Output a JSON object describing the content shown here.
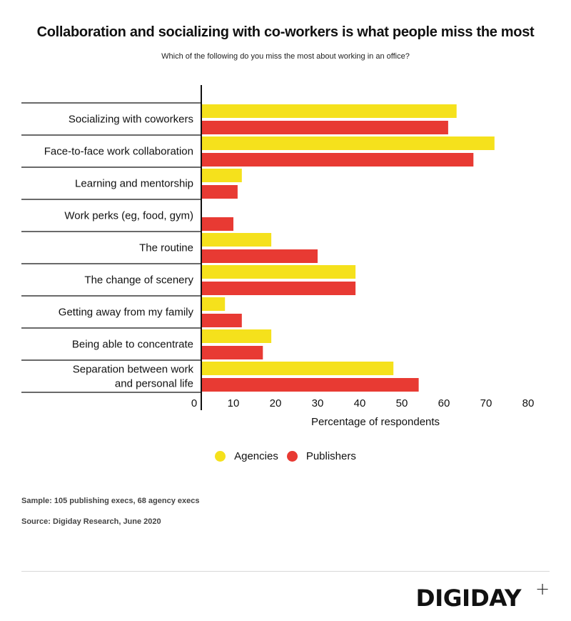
{
  "chart_data": {
    "type": "bar",
    "orientation": "horizontal",
    "title": "Collaboration and socializing with co-workers is what people miss the most",
    "subtitle": "Which of the following do you miss the most about working in an office?",
    "categories": [
      "Socializing with coworkers",
      "Face-to-face work collaboration",
      "Learning and mentorship",
      "Work perks (eg, food, gym)",
      "The routine",
      "The change of scenery",
      "Getting away from my family",
      "Being able to concentrate",
      "Separation between work and personal life"
    ],
    "series": [
      {
        "name": "Agencies",
        "color": "#f5e11c",
        "values": [
          63,
          72,
          12,
          0,
          19,
          39,
          8,
          19,
          48
        ]
      },
      {
        "name": "Publishers",
        "color": "#e83a33",
        "values": [
          61,
          67,
          11,
          10,
          30,
          39,
          12,
          17,
          54
        ]
      }
    ],
    "xlabel": "Percentage of respondents",
    "ylabel": "",
    "xlim": [
      0,
      80
    ],
    "xticks": [
      "0",
      "10",
      "20",
      "30",
      "40",
      "50",
      "60",
      "70",
      "80"
    ],
    "grid": false,
    "legend_position": "bottom-center"
  },
  "notes": {
    "sample": "Sample: 105 publishing execs, 68 agency execs",
    "source": "Source: Digiday Research, June 2020"
  },
  "brand": {
    "logo_text": "DIGIDAY",
    "logo_suffix": "+"
  }
}
